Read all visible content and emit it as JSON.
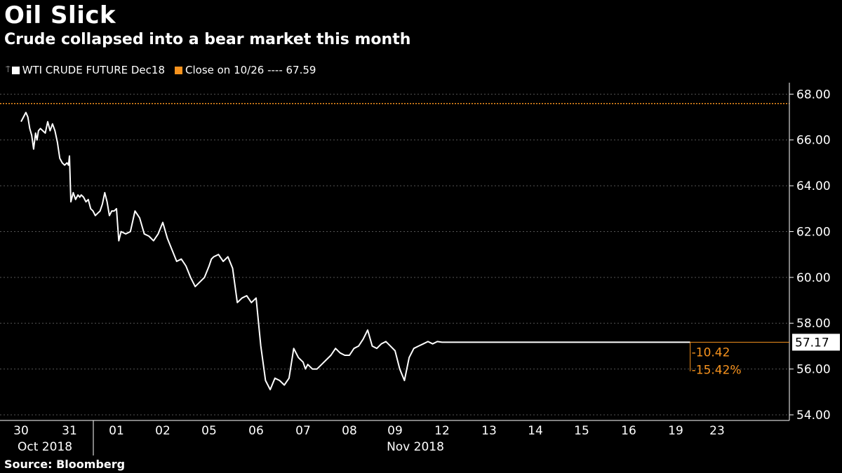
{
  "chart_data": {
    "type": "line",
    "title": "Oil Slick",
    "subtitle": "Crude collapsed into a bear market this month",
    "source": "Source: Bloomberg",
    "legend": [
      {
        "name": "WTI CRUDE FUTURE Dec18",
        "color": "#ffffff"
      },
      {
        "name": "Close on 10/26 ---- 67.59",
        "color": "#f7931e"
      }
    ],
    "ylim": [
      54,
      68.5
    ],
    "y_ticks": [
      "54.00",
      "56.00",
      "58.00",
      "60.00",
      "62.00",
      "64.00",
      "66.00",
      "68.00"
    ],
    "x_ticks": [
      "30",
      "31",
      "01",
      "02",
      "05",
      "06",
      "07",
      "08",
      "09",
      "12",
      "13",
      "14",
      "15",
      "16",
      "19",
      "23"
    ],
    "month_labels": [
      "Oct 2018",
      "Nov 2018"
    ],
    "reference_line": {
      "label": "Close on 10/26",
      "value": 67.59,
      "color": "#f7931e"
    },
    "last_value": {
      "value": 57.17,
      "label": "57.17"
    },
    "annotations": [
      "-10.42",
      "-15.42%"
    ],
    "series": [
      {
        "name": "WTI CRUDE FUTURE Dec18",
        "color": "#ffffff",
        "x": [
          0,
          0.05,
          0.1,
          0.14,
          0.18,
          0.22,
          0.26,
          0.3,
          0.33,
          0.36,
          0.4,
          0.45,
          0.5,
          0.55,
          0.6,
          0.65,
          0.7,
          0.75,
          0.8,
          0.85,
          0.9,
          0.95,
          0.98,
          1.0,
          1.03,
          1.08,
          1.13,
          1.18,
          1.22,
          1.25,
          1.3,
          1.35,
          1.4,
          1.45,
          1.5,
          1.55,
          1.6,
          1.65,
          1.7,
          1.75,
          1.8,
          1.85,
          1.9,
          1.95,
          2.0,
          2.05,
          2.1,
          2.2,
          2.3,
          2.4,
          2.5,
          2.6,
          2.7,
          2.8,
          2.9,
          3.0,
          3.1,
          3.2,
          3.3,
          3.4,
          3.5,
          3.6,
          3.7,
          3.8,
          3.9,
          4.0,
          4.05,
          4.1,
          4.2,
          4.3,
          4.4,
          4.5,
          4.6,
          4.7,
          4.8,
          4.9,
          5.0,
          5.1,
          5.2,
          5.3,
          5.4,
          5.5,
          5.6,
          5.7,
          5.8,
          5.9,
          6.0,
          6.05,
          6.1,
          6.2,
          6.3,
          6.4,
          6.5,
          6.6,
          6.7,
          6.8,
          6.9,
          7.0,
          7.1,
          7.2,
          7.3,
          7.4,
          7.5,
          7.6,
          7.7,
          7.8,
          7.9,
          8.0,
          8.1,
          8.2,
          8.3,
          8.4,
          8.5,
          8.6,
          8.7,
          8.8,
          8.9,
          9.0,
          9.1,
          9.2,
          9.3,
          9.4,
          9.5,
          9.6,
          9.7,
          9.8,
          9.9,
          10.0,
          10.1,
          10.2,
          10.3,
          10.4,
          10.5,
          10.6,
          10.7,
          10.8,
          10.9,
          11.0,
          11.1,
          11.2,
          11.3,
          11.4,
          11.5,
          11.6,
          11.7,
          11.8,
          11.9,
          12.0,
          12.1,
          12.2,
          12.3,
          12.4,
          12.5,
          12.6,
          12.7,
          12.8,
          12.9,
          13.0,
          13.1,
          13.2,
          13.3,
          13.4,
          13.5,
          13.6,
          13.7,
          13.8,
          13.9,
          14.0,
          14.1,
          14.2,
          14.3,
          14.4,
          14.5,
          14.6,
          14.7,
          14.8,
          14.9,
          15.0
        ],
        "values": [
          66.8,
          67.0,
          67.2,
          67.0,
          66.5,
          66.2,
          65.6,
          66.3,
          66.0,
          66.4,
          66.5,
          66.4,
          66.3,
          66.8,
          66.4,
          66.7,
          66.4,
          65.9,
          65.2,
          65.0,
          64.9,
          65.0,
          64.9,
          65.3,
          63.3,
          63.7,
          63.4,
          63.6,
          63.5,
          63.6,
          63.5,
          63.3,
          63.4,
          63.0,
          62.9,
          62.7,
          62.8,
          62.9,
          63.2,
          63.7,
          63.3,
          62.7,
          62.9,
          62.9,
          63.0,
          61.6,
          62.0,
          61.9,
          62.0,
          62.9,
          62.6,
          61.9,
          61.8,
          61.6,
          61.9,
          62.4,
          61.7,
          61.2,
          60.7,
          60.8,
          60.5,
          60.0,
          59.6,
          59.8,
          60.0,
          60.5,
          60.8,
          60.9,
          61.0,
          60.7,
          60.9,
          60.4,
          58.9,
          59.1,
          59.2,
          58.9,
          59.1,
          57.0,
          55.5,
          55.1,
          55.6,
          55.5,
          55.3,
          55.6,
          56.9,
          56.5,
          56.3,
          56.0,
          56.2,
          56.0,
          56.0,
          56.2,
          56.4,
          56.6,
          56.9,
          56.7,
          56.6,
          56.6,
          56.9,
          57.0,
          57.3,
          57.7,
          57.0,
          56.9,
          57.1,
          57.2,
          57.0,
          56.8,
          56.0,
          55.5,
          56.5,
          56.9,
          57.0,
          57.1,
          57.2,
          57.1,
          57.2,
          57.17,
          57.17,
          57.17,
          57.17,
          57.17,
          57.17,
          57.17,
          57.17,
          57.17,
          57.17,
          57.17,
          57.17,
          57.17,
          57.17,
          57.17,
          57.17,
          57.17,
          57.17,
          57.17,
          57.17,
          57.17,
          57.17,
          57.17,
          57.17,
          57.17,
          57.17,
          57.17,
          57.17,
          57.17,
          57.17,
          57.17,
          57.17,
          57.17,
          57.17,
          57.17,
          57.17,
          57.17,
          57.17,
          57.17,
          57.17,
          57.17,
          57.17,
          57.17,
          57.17,
          57.17,
          57.17,
          57.17,
          57.17,
          57.17,
          57.17,
          57.17,
          57.17,
          57.17,
          57.17,
          57.17,
          57.17,
          57.17,
          57.17,
          57.17,
          57.17,
          57.17
        ]
      }
    ],
    "grid": true,
    "legend_position": "top-left"
  }
}
